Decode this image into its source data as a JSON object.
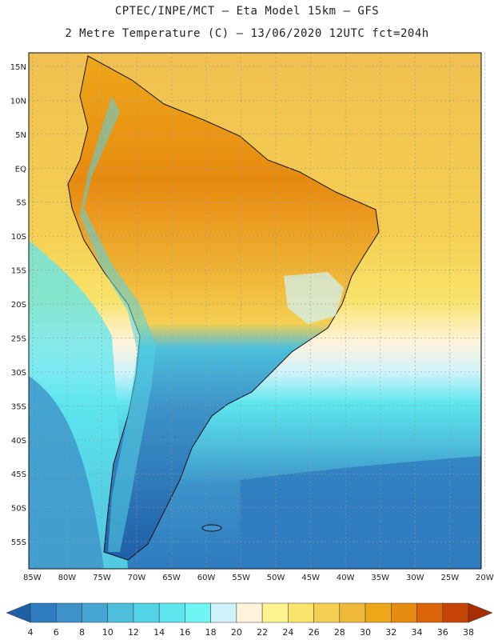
{
  "header": {
    "title_line1": "CPTEC/INPE/MCT –  Eta Model 15km – GFS",
    "title_line2": "2 Metre Temperature (C) – 13/06/2020 12UTC fct=204h"
  },
  "map": {
    "lat_labels": [
      "15N",
      "10N",
      "5N",
      "EQ",
      "5S",
      "10S",
      "15S",
      "20S",
      "25S",
      "30S",
      "35S",
      "40S",
      "45S",
      "50S",
      "55S"
    ],
    "lon_labels": [
      "85W",
      "80W",
      "75W",
      "70W",
      "65W",
      "60W",
      "55W",
      "50W",
      "45W",
      "40W",
      "35W",
      "30W",
      "25W",
      "20W"
    ],
    "lat_range": [
      17,
      -59
    ],
    "lon_range": [
      -85.5,
      -20.5
    ],
    "grid_dashed": true
  },
  "colorbar": {
    "levels": [
      "4",
      "6",
      "8",
      "10",
      "12",
      "14",
      "16",
      "18",
      "20",
      "22",
      "24",
      "26",
      "28",
      "30",
      "32",
      "34",
      "36",
      "38"
    ],
    "colors": [
      "#1f5fa8",
      "#2e7bbf",
      "#3d92c9",
      "#46a6d3",
      "#4dbfdc",
      "#53d3e6",
      "#5de6ee",
      "#70f5f5",
      "#cff3fb",
      "#fff3dc",
      "#fff38f",
      "#f9e36b",
      "#f5cf52",
      "#f0b93a",
      "#eea719",
      "#e78a10",
      "#dc640a",
      "#c64406",
      "#a82d04"
    ]
  }
}
